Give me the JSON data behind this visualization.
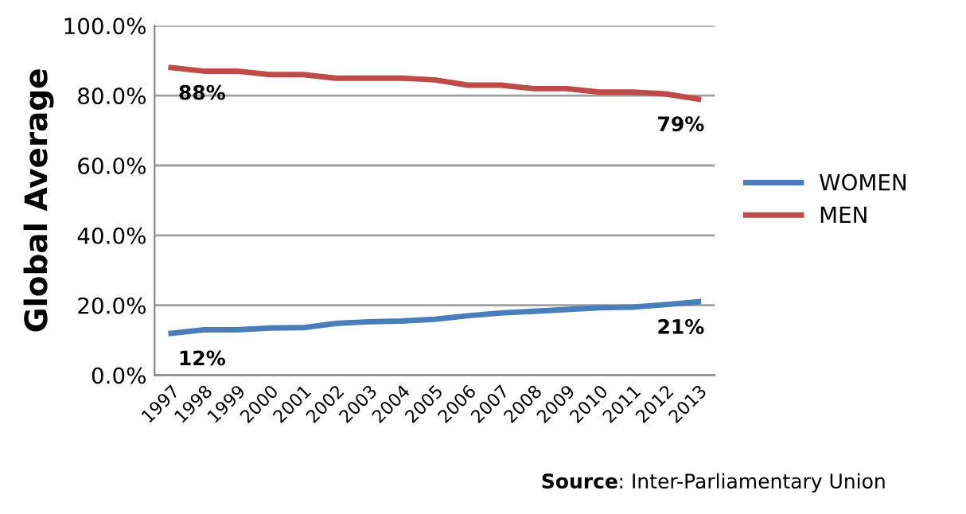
{
  "chart_data": {
    "type": "line",
    "ylabel": "Global Average",
    "categories": [
      "1997",
      "1998",
      "1999",
      "2000",
      "2001",
      "2002",
      "2003",
      "2004",
      "2005",
      "2006",
      "2007",
      "2008",
      "2009",
      "2010",
      "2011",
      "2012",
      "2013"
    ],
    "series": [
      {
        "name": "WOMEN",
        "color": "#4a7ebb",
        "values": [
          12,
          13,
          13,
          13.5,
          13.6,
          14.8,
          15.3,
          15.5,
          16,
          17,
          17.8,
          18.3,
          18.8,
          19.3,
          19.5,
          20.2,
          21
        ],
        "value_labels": [
          "12%",
          null,
          null,
          null,
          null,
          null,
          null,
          null,
          null,
          null,
          null,
          null,
          null,
          null,
          null,
          null,
          "21%"
        ]
      },
      {
        "name": "MEN",
        "color": "#be4b48",
        "values": [
          88,
          87,
          87,
          86,
          86,
          85,
          85,
          85,
          84.5,
          83,
          83,
          82,
          82,
          81,
          81,
          80.5,
          79
        ],
        "value_labels": [
          "88%",
          null,
          null,
          null,
          null,
          null,
          null,
          null,
          null,
          null,
          null,
          null,
          null,
          null,
          null,
          null,
          "79%"
        ]
      }
    ],
    "ylim": [
      0,
      100
    ],
    "yticks": [
      {
        "value": 0,
        "label": "0.0%"
      },
      {
        "value": 20,
        "label": "20.0%"
      },
      {
        "value": 40,
        "label": "40.0%"
      },
      {
        "value": 60,
        "label": "60.0%"
      },
      {
        "value": 80,
        "label": "80.0%"
      },
      {
        "value": 100,
        "label": "100.0%"
      }
    ],
    "grid": "y",
    "legend": "right",
    "marker": "none",
    "line_style": "solid",
    "annotations": [
      "Source: Inter-Parliamentary Union"
    ]
  }
}
